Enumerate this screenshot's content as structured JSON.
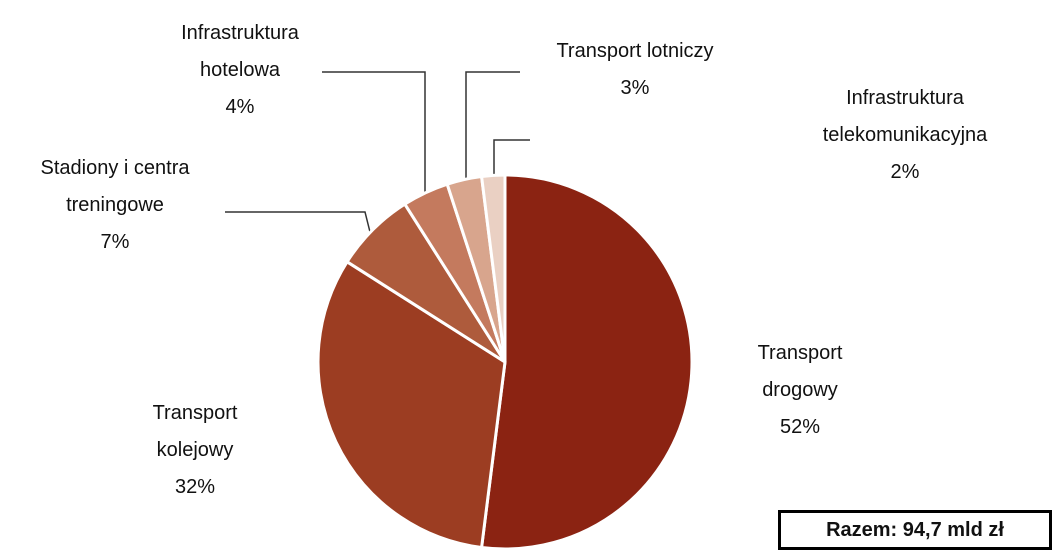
{
  "chart_data": {
    "type": "pie",
    "categories": [
      "Transport drogowy",
      "Transport kolejowy",
      "Stadiony i centra treningowe",
      "Infrastruktura hotelowa",
      "Transport lotniczy",
      "Infrastruktura telekomunikacyjna"
    ],
    "values": [
      52,
      32,
      7,
      4,
      3,
      2
    ],
    "value_labels": [
      "52%",
      "32%",
      "7%",
      "4%",
      "3%",
      "2%"
    ],
    "colors": [
      "#8b2312",
      "#9c3d22",
      "#ae5b3c",
      "#c47a5e",
      "#d8a58d",
      "#ead0c3"
    ],
    "annotation": "Razem: 94,7 mld zł"
  }
}
